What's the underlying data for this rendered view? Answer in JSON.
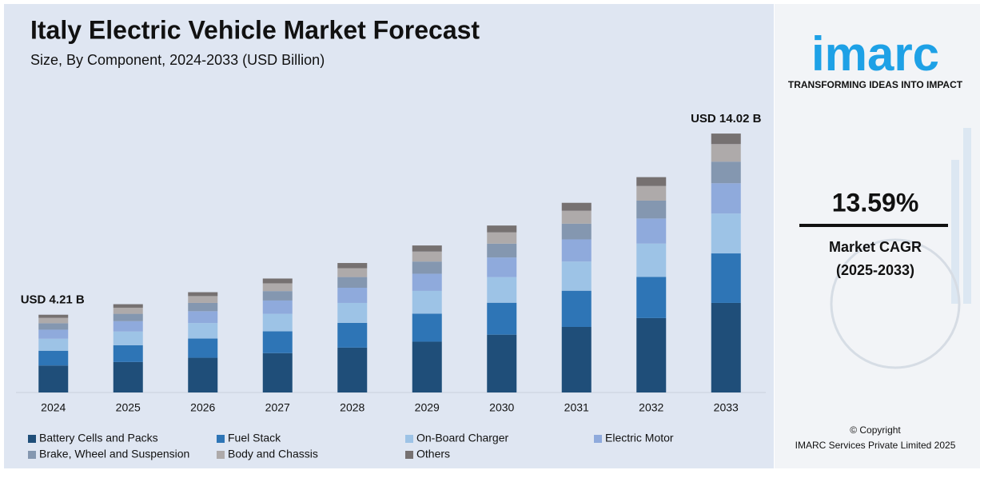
{
  "chart_data": {
    "type": "stacked_bar",
    "title": "Italy Electric Vehicle Market Forecast",
    "subtitle": "Size, By Component, 2024-2033 (USD Billion)",
    "annotations": [
      "USD 4.21 B",
      "USD 14.02 B"
    ],
    "categories": [
      "2024",
      "2025",
      "2026",
      "2027",
      "2028",
      "2029",
      "2030",
      "2031",
      "2032",
      "2033"
    ],
    "ylim": [
      0,
      14.5
    ],
    "series": [
      {
        "name": "Battery Cells and Packs",
        "color": "#1f4e79",
        "values": [
          1.46,
          1.65,
          1.88,
          2.13,
          2.43,
          2.75,
          3.13,
          3.55,
          4.03,
          4.85
        ]
      },
      {
        "name": "Fuel Stack",
        "color": "#2e75b6",
        "values": [
          0.8,
          0.91,
          1.04,
          1.18,
          1.34,
          1.52,
          1.73,
          1.96,
          2.23,
          2.68
        ]
      },
      {
        "name": "On-Board Charger",
        "color": "#9dc3e6",
        "values": [
          0.65,
          0.74,
          0.84,
          0.95,
          1.08,
          1.23,
          1.39,
          1.58,
          1.8,
          2.16
        ]
      },
      {
        "name": "Electric Motor",
        "color": "#8faadc",
        "values": [
          0.49,
          0.56,
          0.64,
          0.72,
          0.82,
          0.93,
          1.06,
          1.2,
          1.36,
          1.64
        ]
      },
      {
        "name": "Brake, Wheel and Suspension",
        "color": "#8497b0",
        "values": [
          0.35,
          0.4,
          0.45,
          0.51,
          0.58,
          0.66,
          0.75,
          0.85,
          0.97,
          1.17
        ]
      },
      {
        "name": "Body and Chassis",
        "color": "#aeaaaa",
        "values": [
          0.29,
          0.33,
          0.37,
          0.42,
          0.48,
          0.54,
          0.61,
          0.7,
          0.79,
          0.95
        ]
      },
      {
        "name": "Others",
        "color": "#767171",
        "values": [
          0.17,
          0.19,
          0.21,
          0.26,
          0.28,
          0.33,
          0.37,
          0.43,
          0.48,
          0.57
        ]
      }
    ]
  },
  "brand": {
    "logo": "imarc",
    "tagline": "TRANSFORMING IDEAS INTO IMPACT",
    "cagr": "13.59%",
    "cagr_label": "Market CAGR",
    "cagr_period": "(2025-2033)",
    "copyright": "© Copyright",
    "company": "IMARC Services Private Limited 2025"
  }
}
